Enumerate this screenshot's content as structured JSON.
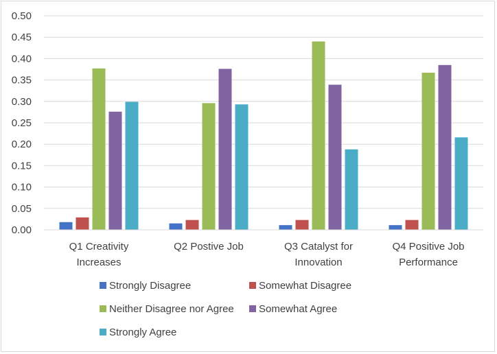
{
  "chart_data": {
    "type": "bar",
    "categories": [
      [
        "Q1 Creativity",
        "Increases"
      ],
      [
        "Q2 Postive Job"
      ],
      [
        "Q3 Catalyst for",
        "Innovation"
      ],
      [
        "Q4 Positive Job",
        "Performance"
      ]
    ],
    "series": [
      {
        "name": "Strongly Disagree",
        "color": "#4472c4",
        "values": [
          0.018,
          0.015,
          0.011,
          0.011
        ]
      },
      {
        "name": "Somewhat Disagree",
        "color": "#c0504d",
        "values": [
          0.029,
          0.023,
          0.023,
          0.023
        ]
      },
      {
        "name": "Neither Disagree nor Agree",
        "color": "#9bbb59",
        "values": [
          0.377,
          0.296,
          0.44,
          0.367
        ]
      },
      {
        "name": "Somewhat Agree",
        "color": "#8064a2",
        "values": [
          0.276,
          0.376,
          0.339,
          0.385
        ]
      },
      {
        "name": "Strongly Agree",
        "color": "#4bacc6",
        "values": [
          0.299,
          0.293,
          0.188,
          0.216
        ]
      }
    ],
    "ylim": [
      0,
      0.5
    ],
    "yticks": [
      "0.00",
      "0.05",
      "0.10",
      "0.15",
      "0.20",
      "0.25",
      "0.30",
      "0.35",
      "0.40",
      "0.45",
      "0.50"
    ],
    "grid": true,
    "legend_position": "bottom",
    "title": "",
    "xlabel": "",
    "ylabel": ""
  }
}
